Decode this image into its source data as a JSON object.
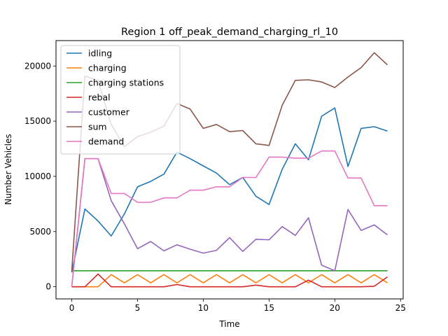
{
  "chart_data": {
    "type": "line",
    "title": "Region 1 off_peak_demand_charging_rl_10",
    "xlabel": "Time",
    "ylabel": "Number Vehicles",
    "xlim": [
      -1.2,
      25.2
    ],
    "ylim": [
      -1100,
      22300
    ],
    "xticks": [
      0,
      5,
      10,
      15,
      20,
      25
    ],
    "yticks": [
      0,
      5000,
      10000,
      15000,
      20000
    ],
    "legend_position": "upper-left",
    "x": [
      0,
      1,
      2,
      3,
      4,
      5,
      6,
      7,
      8,
      9,
      10,
      11,
      12,
      13,
      14,
      15,
      16,
      17,
      18,
      19,
      20,
      21,
      22,
      23,
      24
    ],
    "series": [
      {
        "name": "idling",
        "color": "#1f77b4",
        "values": [
          1300,
          7050,
          5950,
          4600,
          6600,
          9050,
          9550,
          10200,
          12200,
          11600,
          10950,
          10300,
          9250,
          9900,
          8200,
          7450,
          10650,
          12950,
          11500,
          15450,
          16200,
          10900,
          14350,
          14500,
          14100
        ]
      },
      {
        "name": "charging",
        "color": "#ff7f0e",
        "values": [
          0,
          0,
          0,
          1100,
          350,
          1100,
          350,
          1100,
          350,
          1100,
          350,
          1100,
          350,
          1100,
          350,
          1100,
          350,
          1100,
          350,
          1100,
          350,
          1100,
          350,
          1100,
          350
        ]
      },
      {
        "name": "charging stations",
        "color": "#2ca02c",
        "values": [
          1450,
          1450,
          1450,
          1450,
          1450,
          1450,
          1450,
          1450,
          1450,
          1450,
          1450,
          1450,
          1450,
          1450,
          1450,
          1450,
          1450,
          1450,
          1450,
          1450,
          1450,
          1450,
          1450,
          1450,
          1450
        ]
      },
      {
        "name": "rebal",
        "color": "#d62728",
        "values": [
          0,
          0,
          1150,
          0,
          0,
          0,
          0,
          0,
          200,
          0,
          0,
          0,
          0,
          0,
          150,
          0,
          0,
          0,
          600,
          0,
          0,
          0,
          0,
          50,
          900
        ]
      },
      {
        "name": "customer",
        "color": "#9467bd",
        "values": [
          0,
          11600,
          11600,
          7800,
          5700,
          3450,
          4100,
          3250,
          3800,
          3400,
          3050,
          3300,
          4450,
          3200,
          4300,
          4250,
          5450,
          4650,
          6250,
          1950,
          1450,
          7000,
          5100,
          5600,
          4700
        ]
      },
      {
        "name": "sum",
        "color": "#8c564b",
        "values": [
          1400,
          19100,
          18700,
          14700,
          12700,
          13600,
          14000,
          14550,
          16600,
          16100,
          14350,
          14700,
          14050,
          14150,
          12950,
          12800,
          16450,
          18700,
          18750,
          18550,
          18050,
          19000,
          19850,
          21200,
          20100
        ]
      },
      {
        "name": "demand",
        "color": "#e377c2",
        "values": [
          0,
          11600,
          11600,
          8450,
          8450,
          7650,
          7650,
          8050,
          8050,
          8750,
          8750,
          9050,
          9050,
          9900,
          9900,
          11750,
          11750,
          11650,
          11650,
          12300,
          12300,
          9850,
          9850,
          7350,
          7350
        ]
      }
    ]
  }
}
